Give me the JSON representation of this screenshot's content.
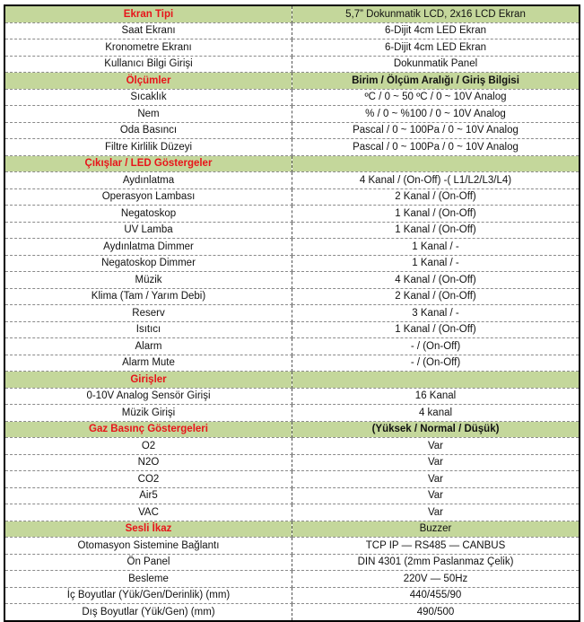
{
  "colors": {
    "header_bg": "#c4d79b",
    "header_text": "#e8141a"
  },
  "rows": [
    {
      "left": "Ekran Tipi",
      "right": "5,7” Dokunmatik LCD, 2x16 LCD Ekran",
      "header": true,
      "right_bold": false
    },
    {
      "left": "Saat Ekranı",
      "right": "6-Dijit 4cm LED Ekran"
    },
    {
      "left": "Kronometre Ekranı",
      "right": "6-Dijit 4cm LED Ekran"
    },
    {
      "left": "Kullanıcı Bilgi Girişi",
      "right": "Dokunmatik Panel"
    },
    {
      "left": "Ölçümler",
      "right": "Birim / Ölçüm Aralığı / Giriş Bilgisi",
      "header": true,
      "right_bold": true
    },
    {
      "left": "Sıcaklık",
      "right": "ºC / 0 ~ 50 ºC / 0 ~ 10V Analog"
    },
    {
      "left": "Nem",
      "right": "% / 0 ~ %100 / 0 ~ 10V Analog"
    },
    {
      "left": "Oda Basıncı",
      "right": "Pascal / 0 ~ 100Pa / 0 ~ 10V Analog"
    },
    {
      "left": "Filtre Kirlilik Düzeyi",
      "right": "Pascal / 0 ~ 100Pa / 0 ~ 10V Analog"
    },
    {
      "left": "Çıkışlar / LED Göstergeler",
      "right": "",
      "header": true
    },
    {
      "left": "Aydınlatma",
      "right": "4 Kanal / (On-Off) -( L1/L2/L3/L4)"
    },
    {
      "left": "Operasyon Lambası",
      "right": "2 Kanal / (On-Off)"
    },
    {
      "left": "Negatoskop",
      "right": "1 Kanal / (On-Off)"
    },
    {
      "left": "UV Lamba",
      "right": "1 Kanal / (On-Off)"
    },
    {
      "left": "Aydınlatma Dimmer",
      "right": "1 Kanal / -"
    },
    {
      "left": "Negatoskop Dimmer",
      "right": "1 Kanal / -"
    },
    {
      "left": "Müzik",
      "right": "4 Kanal / (On-Off)"
    },
    {
      "left": "Klima (Tam / Yarım Debi)",
      "right": "2 Kanal / (On-Off)"
    },
    {
      "left": "Reserv",
      "right": "3 Kanal / -"
    },
    {
      "left": "Isıtıcı",
      "right": "1 Kanal / (On-Off)"
    },
    {
      "left": "Alarm",
      "right": "- / (On-Off)"
    },
    {
      "left": "Alarm Mute",
      "right": "- / (On-Off)"
    },
    {
      "left": "Girişler",
      "right": "",
      "header": true
    },
    {
      "left": "0-10V Analog Sensör Girişi",
      "right": "16 Kanal"
    },
    {
      "left": "Müzik Girişi",
      "right": "4 kanal"
    },
    {
      "left": "Gaz Basınç Göstergeleri",
      "right": "(Yüksek / Normal / Düşük)",
      "header": true,
      "right_bold": true
    },
    {
      "left": "O2",
      "right": "Var"
    },
    {
      "left": "N2O",
      "right": "Var"
    },
    {
      "left": "CO2",
      "right": "Var"
    },
    {
      "left": "Air5",
      "right": "Var"
    },
    {
      "left": "VAC",
      "right": "Var"
    },
    {
      "left": "Sesli İkaz",
      "right": "Buzzer",
      "header": true,
      "right_bold": false
    },
    {
      "left": "Otomasyon Sistemine Bağlantı",
      "right": "TCP IP — RS485 — CANBUS"
    },
    {
      "left": "Ön Panel",
      "right": "DIN 4301 (2mm Paslanmaz Çelik)"
    },
    {
      "left": "Besleme",
      "right": "220V — 50Hz"
    },
    {
      "left": "İç Boyutlar (Yük/Gen/Derinlik) (mm)",
      "right": "440/455/90"
    },
    {
      "left": "Dış Boyutlar (Yük/Gen) (mm)",
      "right": "490/500"
    }
  ]
}
